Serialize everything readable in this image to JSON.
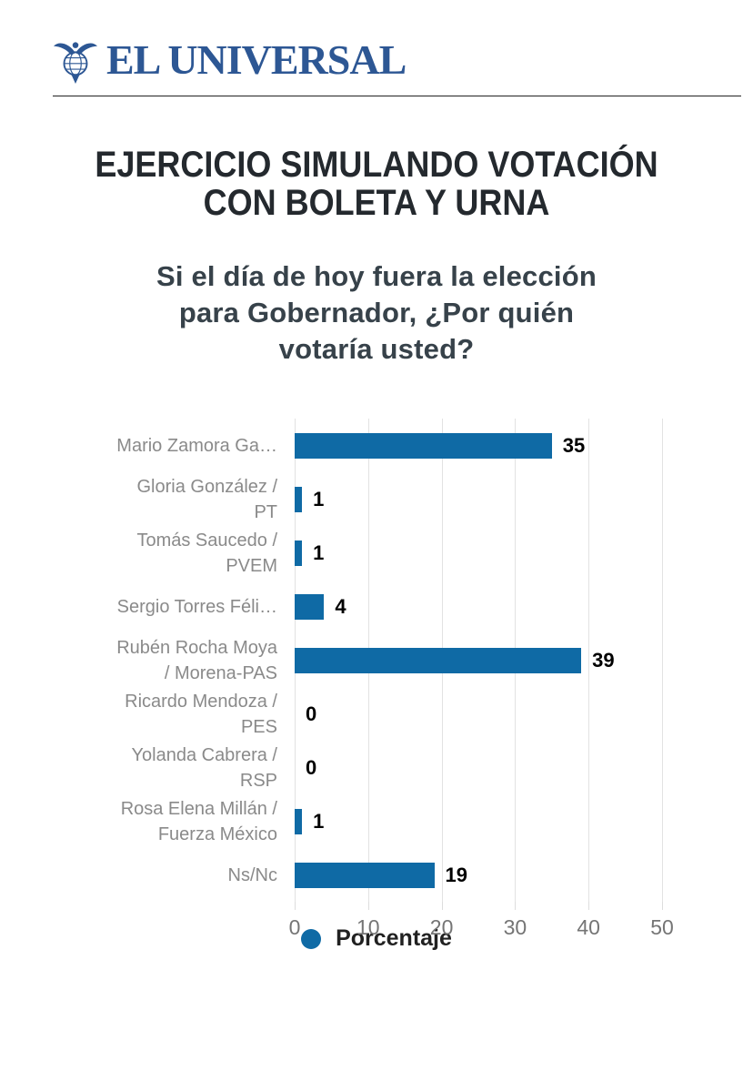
{
  "header": {
    "brand": "EL UNIVERSAL",
    "brand_color": "#2d5794"
  },
  "title": {
    "line1": "EJERCICIO SIMULANDO VOTACIÓN",
    "line2": "CON BOLETA Y URNA"
  },
  "subtitle": {
    "line1": "Si el día de hoy fuera la elección",
    "line2": "para Gobernador, ¿Por quién",
    "line3": "votaría usted?"
  },
  "chart_data": {
    "type": "bar",
    "orientation": "horizontal",
    "title": "",
    "xlabel": "",
    "ylabel": "",
    "categories": [
      "Mario Zamora Ga…",
      "Gloria González / PT",
      "Tomás Saucedo / PVEM",
      "Sergio Torres Féli…",
      "Rubén Rocha Moya / Morena-PAS",
      "Ricardo Mendoza / PES",
      "Yolanda Cabrera / RSP",
      "Rosa Elena Millán / Fuerza México",
      "Ns/Nc"
    ],
    "label_lines": [
      [
        "Mario Zamora Ga…"
      ],
      [
        "Gloria González /",
        "PT"
      ],
      [
        "Tomás Saucedo /",
        "PVEM"
      ],
      [
        "Sergio Torres Féli…"
      ],
      [
        "Rubén Rocha Moya",
        "/ Morena-PAS"
      ],
      [
        "Ricardo Mendoza /",
        "PES"
      ],
      [
        "Yolanda Cabrera /",
        "RSP"
      ],
      [
        "Rosa Elena Millán /",
        "Fuerza México"
      ],
      [
        "Ns/Nc"
      ]
    ],
    "values": [
      35,
      1,
      1,
      4,
      39,
      0,
      0,
      1,
      19
    ],
    "xticks": [
      0,
      10,
      20,
      30,
      40,
      50
    ],
    "xlim": [
      0,
      57
    ],
    "grid": true,
    "bar_color": "#0f6aa5",
    "legend_position": "bottom",
    "legend_label": "Porcentaje"
  }
}
